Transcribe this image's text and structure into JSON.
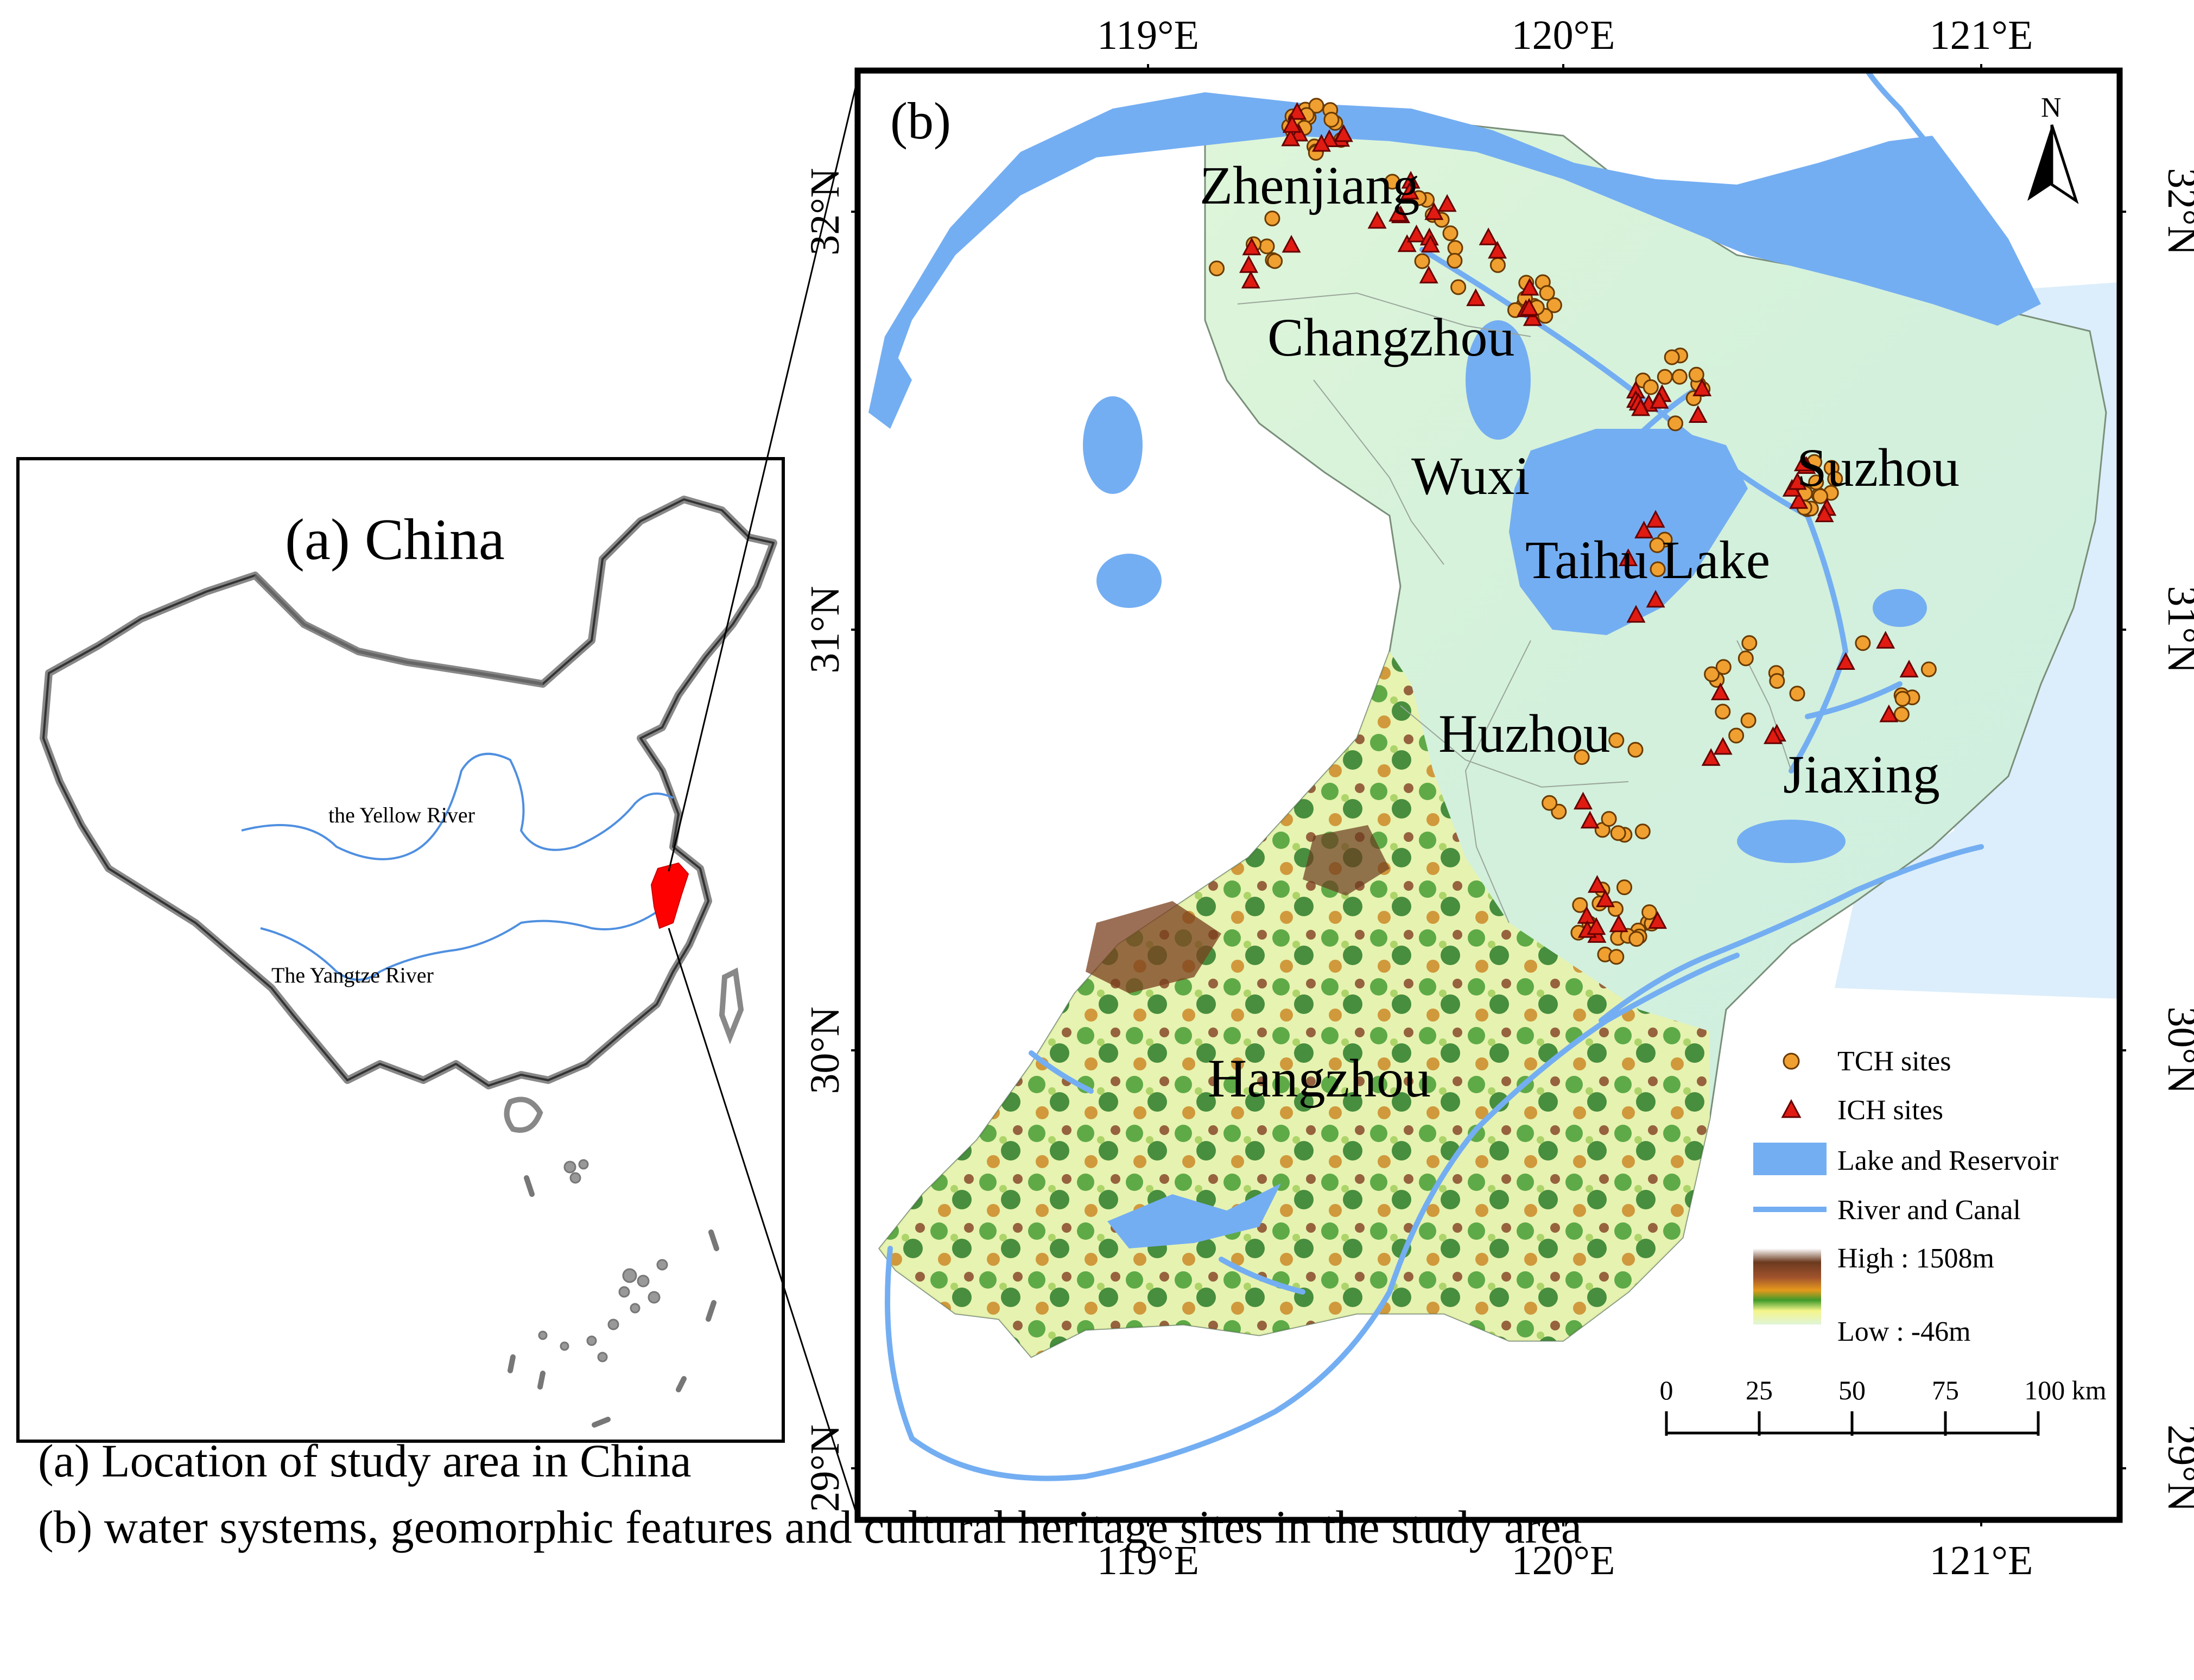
{
  "panel_a": {
    "label": "(a) China",
    "yellow_river_label": "the Yellow River",
    "yangtze_river_label": "The Yangtze River"
  },
  "panel_b": {
    "label": "(b)",
    "north_label": "N",
    "top_ticks": [
      "119°E",
      "120°E",
      "121°E"
    ],
    "bottom_ticks": [
      "119°E",
      "120°E",
      "121°E"
    ],
    "left_ticks": [
      "32°N",
      "31°N",
      "30°N",
      "29°N"
    ],
    "right_ticks": [
      "32°N",
      "31°N",
      "30°N",
      "29°N"
    ],
    "city_labels": [
      "Zhenjiang",
      "Changzhou",
      "Wuxi",
      "Suzhou",
      "Taihu Lake",
      "Huzhou",
      "Jiaxing",
      "Hangzhou"
    ]
  },
  "legend": {
    "tch": "TCH sites",
    "ich": "ICH sites",
    "lake": "Lake and Reservoir",
    "river": "River and Canal",
    "high": "High : 1508m",
    "low": "Low : -46m"
  },
  "scale_bar": {
    "labels": [
      "0",
      "25",
      "50",
      "75",
      "100 km"
    ]
  },
  "colors": {
    "water": "#74aef2",
    "lowland": "#d6f2dc",
    "sea": "#dceefb",
    "tch": "#f0a030",
    "ich": "#e01b12",
    "china_highlight": "#ff0000"
  },
  "captions": [
    "(a) Location of study area in China",
    "(b) water systems, geomorphic features and cultural heritage sites in the study area"
  ]
}
